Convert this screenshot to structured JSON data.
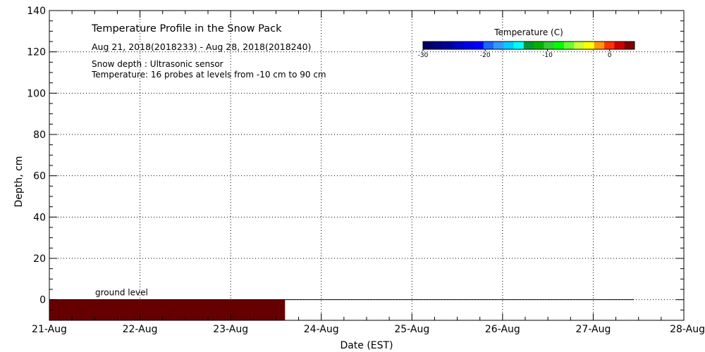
{
  "chart_data": {
    "type": "heatmap",
    "title": "Temperature Profile in the Snow Pack",
    "subtitle": "Aug 21, 2018(2018233) - Aug 28, 2018(2018240)",
    "notes": [
      "Snow depth : Ultrasonic sensor",
      "Temperature: 16 probes at levels from -10 cm to 90 cm"
    ],
    "xlabel": "Date (EST)",
    "ylabel": "Depth, cm",
    "x_categories": [
      "21-Aug",
      "22-Aug",
      "23-Aug",
      "24-Aug",
      "25-Aug",
      "26-Aug",
      "27-Aug",
      "28-Aug"
    ],
    "ylim": [
      -10,
      140
    ],
    "y_ticks": [
      0,
      20,
      40,
      60,
      80,
      100,
      120,
      140
    ],
    "grid": true,
    "ground_level": {
      "label": "ground level",
      "depth": 0,
      "x_end_day": 6.45
    },
    "temperature_band": {
      "from_depth": -10,
      "to_depth": 0,
      "x_start_day": 0,
      "x_end_day": 2.6,
      "color": "#660000"
    },
    "colorbar": {
      "title": "Temperature (C)",
      "range": [
        -30,
        4
      ],
      "tick_values": [
        -30,
        -20,
        -10,
        0
      ],
      "tick_labels": [
        "-30",
        "-20",
        "-10",
        "0"
      ],
      "colors": [
        "#000066",
        "#000080",
        "#000099",
        "#0000cc",
        "#0000e6",
        "#0000ff",
        "#1a66ff",
        "#3399ff",
        "#00ccff",
        "#00ffff",
        "#009933",
        "#00b300",
        "#33cc33",
        "#00ff00",
        "#66ff33",
        "#ccff33",
        "#ffff00",
        "#ff9900",
        "#ff3300",
        "#cc0000",
        "#800000"
      ]
    }
  }
}
